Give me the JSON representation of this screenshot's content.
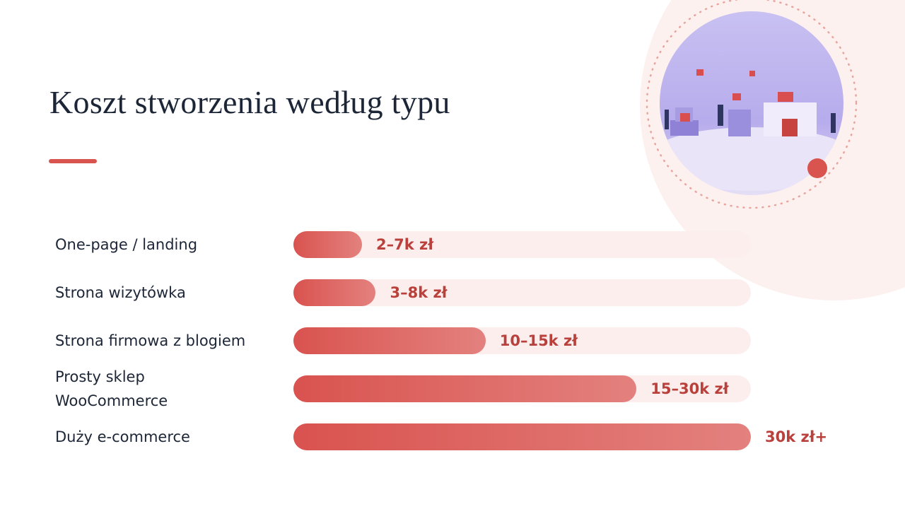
{
  "chart_data": {
    "type": "bar",
    "title": "Koszt stworzenia według typu",
    "rows": [
      {
        "label": "One-page / landing",
        "amount": "2–7k zł",
        "fill": 15
      },
      {
        "label": "Strona wizytówka",
        "amount": "3–8k zł",
        "fill": 18
      },
      {
        "label": "Strona firmowa z blogiem",
        "amount": "10–15k zł",
        "fill": 42
      },
      {
        "label": "Prosty sklep\nWooCommerce",
        "amount": "15–30k zł",
        "fill": 75
      },
      {
        "label": "Duży e-commerce",
        "amount": "30k zł+",
        "fill": 100
      }
    ],
    "xlim": [
      0,
      100
    ],
    "color": "#d9534f"
  }
}
